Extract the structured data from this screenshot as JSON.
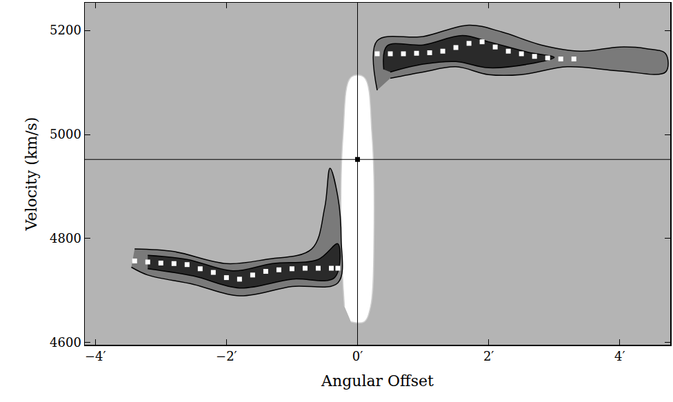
{
  "chart_data": {
    "type": "position-velocity",
    "x_label": "Angular Offset",
    "y_label": "Velocity (km/s)",
    "xlim": [
      -4.16,
      4.77
    ],
    "ylim": [
      4596,
      5253
    ],
    "xticks": [
      {
        "value": -4,
        "label": "−4′"
      },
      {
        "value": -2,
        "label": "−2′"
      },
      {
        "value": 0,
        "label": "0′"
      },
      {
        "value": 2,
        "label": "2′"
      },
      {
        "value": 4,
        "label": "4′"
      }
    ],
    "yticks": [
      4600,
      4800,
      5000,
      5200
    ],
    "grid": false,
    "background": "#b4b4b4",
    "reference": {
      "x": 0,
      "y": 4952,
      "color": "#000000"
    },
    "regions": [
      {
        "color": "#ffffff",
        "line_color": "#d0d0d0",
        "x": [
          -0.2,
          -0.25,
          -0.22,
          -0.1,
          0.1,
          0.22,
          0.25,
          0.2,
          0.1,
          -0.1
        ],
        "y": [
          4670,
          4800,
          5000,
          5110,
          5110,
          5000,
          4800,
          4670,
          4640,
          4640
        ]
      },
      {
        "color": "#7a7a7a",
        "line_color": "#000000",
        "x": [
          0.3,
          0.3,
          1.0,
          1.7,
          2.2,
          2.8,
          3.4,
          4.0,
          4.4,
          4.7,
          4.7,
          4.0,
          3.2,
          2.5,
          2.0,
          1.5,
          1.0,
          0.5
        ],
        "y": [
          5085,
          5180,
          5188,
          5210,
          5197,
          5172,
          5160,
          5168,
          5165,
          5155,
          5120,
          5122,
          5130,
          5115,
          5115,
          5130,
          5120,
          5108
        ]
      },
      {
        "color": "#2a2a2a",
        "line_color": "#000000",
        "x": [
          0.4,
          0.45,
          1.0,
          1.6,
          2.0,
          2.6,
          3.0,
          2.6,
          2.0,
          1.5,
          1.0,
          0.5
        ],
        "y": [
          5125,
          5170,
          5172,
          5190,
          5178,
          5158,
          5148,
          5135,
          5128,
          5140,
          5135,
          5120
        ]
      },
      {
        "color": "#7a7a7a",
        "line_color": "#000000",
        "x": [
          -3.4,
          -2.8,
          -2.0,
          -1.4,
          -0.7,
          -0.5,
          -0.42,
          -0.3,
          -0.25,
          -0.3,
          -1.0,
          -1.8,
          -2.5,
          -3.2,
          -3.45
        ],
        "y": [
          4780,
          4775,
          4752,
          4760,
          4780,
          4860,
          4935,
          4880,
          4800,
          4715,
          4708,
          4690,
          4712,
          4730,
          4745
        ]
      },
      {
        "color": "#2a2a2a",
        "line_color": "#000000",
        "x": [
          -3.2,
          -2.6,
          -1.9,
          -1.3,
          -0.6,
          -0.3,
          -0.35,
          -1.0,
          -1.8,
          -2.5,
          -3.2
        ],
        "y": [
          4768,
          4760,
          4738,
          4752,
          4760,
          4790,
          4725,
          4722,
          4705,
          4728,
          4742
        ]
      }
    ],
    "tracks": [
      {
        "color": "#ffffff",
        "marker": "square",
        "x": [
          0.3,
          0.5,
          0.7,
          0.9,
          1.1,
          1.3,
          1.5,
          1.7,
          1.9,
          2.1,
          2.3,
          2.5,
          2.7,
          2.9,
          3.1,
          3.3
        ],
        "y": [
          5155,
          5155,
          5155,
          5156,
          5157,
          5160,
          5167,
          5175,
          5178,
          5168,
          5160,
          5155,
          5150,
          5147,
          5145,
          5145
        ]
      },
      {
        "color": "#ffffff",
        "marker": "square",
        "x": [
          -3.4,
          -3.2,
          -3.0,
          -2.8,
          -2.6,
          -2.4,
          -2.2,
          -2.0,
          -1.8,
          -1.6,
          -1.4,
          -1.2,
          -1.0,
          -0.8,
          -0.6,
          -0.4,
          -0.3
        ],
        "y": [
          4757,
          4755,
          4753,
          4752,
          4750,
          4742,
          4735,
          4725,
          4722,
          4730,
          4737,
          4740,
          4742,
          4743,
          4743,
          4743,
          4743
        ]
      }
    ]
  }
}
